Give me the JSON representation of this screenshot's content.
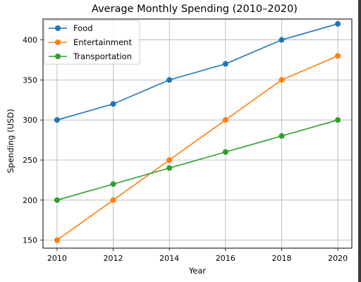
{
  "chart_data": {
    "type": "line",
    "title": "Average Monthly Spending (2010–2020)",
    "xlabel": "Year",
    "ylabel": "Spending (USD)",
    "x": [
      2010,
      2012,
      2014,
      2016,
      2018,
      2020
    ],
    "xticks": [
      "2010",
      "2012",
      "2014",
      "2016",
      "2018",
      "2020"
    ],
    "yticks": [
      "150",
      "200",
      "250",
      "300",
      "350",
      "400"
    ],
    "xlim": [
      2009.5,
      2020.5
    ],
    "ylim": [
      140,
      426
    ],
    "grid": true,
    "legend_position": "top-left",
    "series": [
      {
        "name": "Food",
        "color": "#1f77b4",
        "marker": "circle",
        "values": [
          300,
          320,
          350,
          370,
          400,
          420
        ]
      },
      {
        "name": "Entertainment",
        "color": "#ff7f0e",
        "marker": "circle",
        "values": [
          150,
          200,
          250,
          300,
          350,
          380
        ]
      },
      {
        "name": "Transportation",
        "color": "#2ca02c",
        "marker": "circle",
        "values": [
          200,
          220,
          240,
          260,
          280,
          300
        ]
      }
    ]
  }
}
